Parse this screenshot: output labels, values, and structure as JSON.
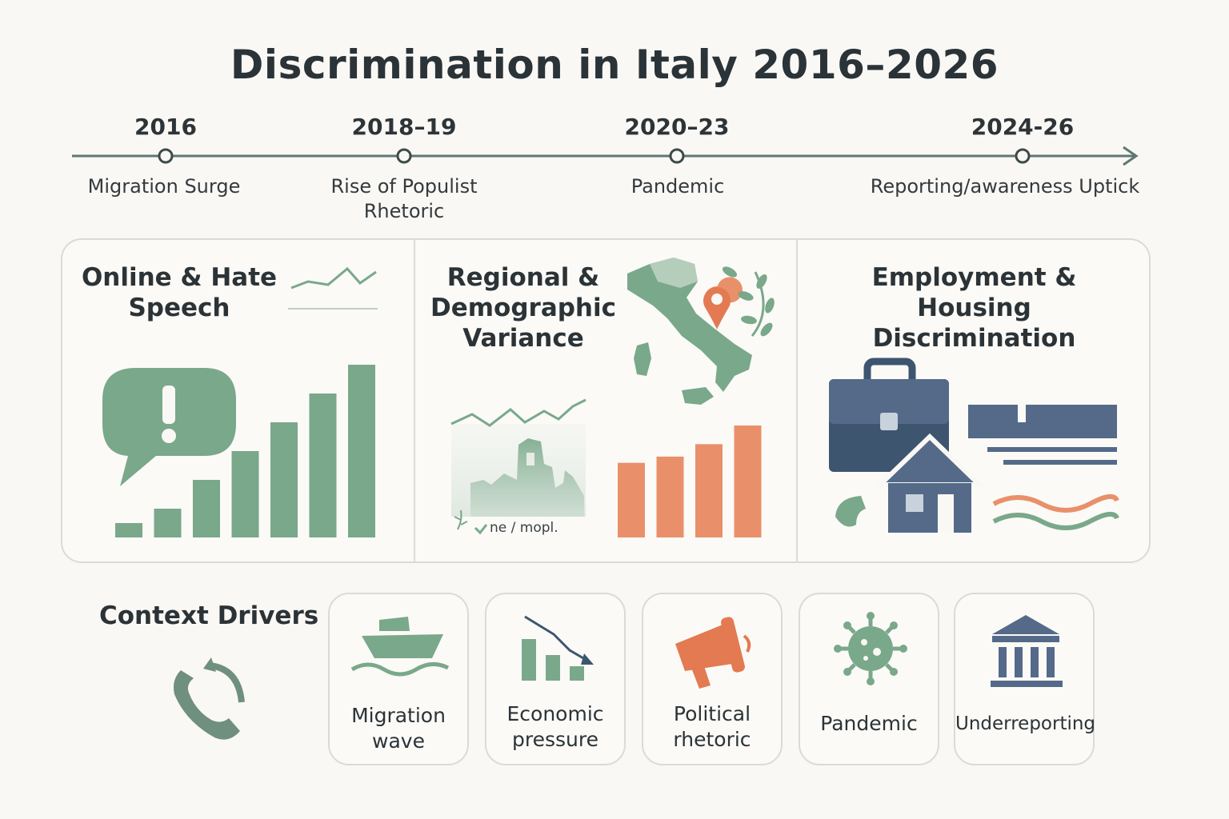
{
  "title": "Discrimination in Italy 2016–2026",
  "timeline": [
    {
      "year": "2016",
      "label": "Migration Surge"
    },
    {
      "year": "2018–19",
      "label": "Rise of Populist Rhetoric"
    },
    {
      "year": "2020–23",
      "label": "Pandemic"
    },
    {
      "year": "2024-26",
      "label": "Reporting/awareness Uptick"
    }
  ],
  "panels": [
    {
      "title": "Online & Hate Speech",
      "bars": [
        1,
        2,
        4,
        6,
        8,
        10,
        12
      ]
    },
    {
      "title": "Regional & Demographic Variance",
      "bars": [
        6,
        6.5,
        7.5,
        9
      ],
      "map_tag": "ne / mopl."
    },
    {
      "title": "Employment & Housing Discrimination"
    }
  ],
  "drivers": {
    "title": "Context Drivers",
    "items": [
      {
        "label": "Migration wave",
        "icon": "ship-icon"
      },
      {
        "label": "Economic pressure",
        "icon": "declining-bars-icon"
      },
      {
        "label": "Political rhetoric",
        "icon": "megaphone-icon"
      },
      {
        "label": "Pandemic",
        "icon": "virus-icon"
      },
      {
        "label": "Underreporting",
        "icon": "institution-icon"
      }
    ]
  },
  "colors": {
    "green": "#7aa88a",
    "orange": "#e9906a",
    "slate": "#546a88",
    "navy": "#3e5570",
    "text": "#2b3337"
  }
}
